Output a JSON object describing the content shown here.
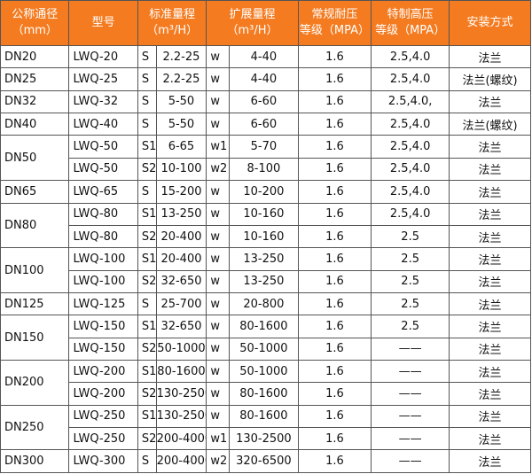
{
  "table": {
    "headers": [
      [
        "公称通径",
        "（mm）"
      ],
      [
        "型号"
      ],
      [
        "标准量程",
        "（m³/H）"
      ],
      [
        "扩展量程",
        "（m³/H）"
      ],
      [
        "常规耐压",
        "等级（MPA）"
      ],
      [
        "特制高压",
        "等级（MPA）"
      ],
      [
        "安装方式"
      ]
    ],
    "groups": [
      {
        "dn": "DN20",
        "rows": [
          [
            "LWQ-20",
            "S",
            "2.2-25",
            "w",
            "4-40",
            "1.6",
            "2.5,4.0",
            "法兰"
          ]
        ]
      },
      {
        "dn": "DN25",
        "rows": [
          [
            "LWQ-25",
            "S",
            "2.2-25",
            "w",
            "4-40",
            "1.6",
            "2.5,4.0",
            "法兰(螺纹)"
          ]
        ]
      },
      {
        "dn": "DN32",
        "rows": [
          [
            "LWQ-32",
            "S",
            "5-50",
            "w",
            "6-60",
            "1.6",
            "2.5,4.0,",
            "法兰"
          ]
        ]
      },
      {
        "dn": "DN40",
        "rows": [
          [
            "LWQ-40",
            "S",
            "5-50",
            "w",
            "6-60",
            "1.6",
            "2.5,4.0",
            "法兰(螺纹)"
          ]
        ]
      },
      {
        "dn": "DN50",
        "rows": [
          [
            "LWQ-50",
            "S1",
            "6-65",
            "w1",
            "5-70",
            "1.6",
            "2.5,4.0",
            "法兰"
          ],
          [
            "LWQ-50",
            "S2",
            "10-100",
            "w2",
            "8-100",
            "1.6",
            "2.5,4.0",
            "法兰"
          ]
        ]
      },
      {
        "dn": "DN65",
        "rows": [
          [
            "LWQ-65",
            "S",
            "15-200",
            "w",
            "10-200",
            "1.6",
            "2.5,4.0",
            "法兰"
          ]
        ]
      },
      {
        "dn": "DN80",
        "rows": [
          [
            "LWQ-80",
            "S1",
            "13-250",
            "w",
            "10-160",
            "1.6",
            "2.5,4.0",
            "法兰"
          ],
          [
            "LWQ-80",
            "S2",
            "20-400",
            "w",
            "10-160",
            "1.6",
            "2.5",
            "法兰"
          ]
        ]
      },
      {
        "dn": "DN100",
        "rows": [
          [
            "LWQ-100",
            "S1",
            "20-400",
            "w",
            "13-250",
            "1.6",
            "2.5",
            "法兰"
          ],
          [
            "LWQ-100",
            "S2",
            "32-650",
            "w",
            "13-250",
            "1.6",
            "2.5",
            "法兰"
          ]
        ]
      },
      {
        "dn": "DN125",
        "rows": [
          [
            "LWQ-125",
            "S",
            "25-700",
            "w",
            "20-800",
            "1.6",
            "2.5",
            "法兰"
          ]
        ]
      },
      {
        "dn": "DN150",
        "rows": [
          [
            "LWQ-150",
            "S1",
            "32-650",
            "w",
            "80-1600",
            "1.6",
            "2.5",
            "法兰"
          ],
          [
            "LWQ-150",
            "S2",
            "50-1000",
            "w",
            "50-1000",
            "1.6",
            "——",
            "法兰"
          ]
        ]
      },
      {
        "dn": "DN200",
        "rows": [
          [
            "LWQ-200",
            "S1",
            "80-1600",
            "w",
            "50-1000",
            "1.6",
            "——",
            "法兰"
          ],
          [
            "LWQ-200",
            "S2",
            "130-2500",
            "w",
            "80-1600",
            "1.6",
            "——",
            "法兰"
          ]
        ]
      },
      {
        "dn": "DN250",
        "rows": [
          [
            "LWQ-250",
            "S1",
            "130-2500",
            "w",
            "80-1600",
            "1.6",
            "——",
            "法兰"
          ],
          [
            "LWQ-250",
            "S2",
            "200-4000",
            "w1",
            "130-2500",
            "1.6",
            "——",
            "法兰"
          ]
        ]
      },
      {
        "dn": "DN300",
        "rows": [
          [
            "LWQ-300",
            "S",
            "200-4000",
            "w2",
            "320-6500",
            "1.6",
            "——",
            "法兰"
          ]
        ]
      }
    ]
  }
}
